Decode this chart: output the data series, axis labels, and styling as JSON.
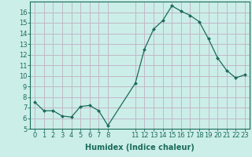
{
  "x": [
    0,
    1,
    2,
    3,
    4,
    5,
    6,
    7,
    8,
    11,
    12,
    13,
    14,
    15,
    16,
    17,
    18,
    19,
    20,
    21,
    22,
    23
  ],
  "y": [
    7.5,
    6.7,
    6.7,
    6.2,
    6.1,
    7.1,
    7.2,
    6.7,
    5.3,
    9.3,
    12.5,
    14.4,
    15.2,
    16.6,
    16.1,
    15.7,
    15.1,
    13.5,
    11.7,
    10.5,
    9.8,
    10.1
  ],
  "line_color": "#1a6b5a",
  "marker": "D",
  "markersize": 2.0,
  "linewidth": 0.9,
  "xlabel": "Humidex (Indice chaleur)",
  "xlim": [
    -0.5,
    23.5
  ],
  "ylim": [
    5,
    17
  ],
  "yticks": [
    5,
    6,
    7,
    8,
    9,
    10,
    11,
    12,
    13,
    14,
    15,
    16
  ],
  "xticks": [
    0,
    1,
    2,
    3,
    4,
    5,
    6,
    7,
    8,
    11,
    12,
    13,
    14,
    15,
    16,
    17,
    18,
    19,
    20,
    21,
    22,
    23
  ],
  "background_color": "#cceee8",
  "grid_color": "#c0b8c8",
  "tick_color": "#1a6b5a",
  "label_color": "#1a6b5a",
  "xlabel_fontsize": 7,
  "tick_fontsize": 6
}
